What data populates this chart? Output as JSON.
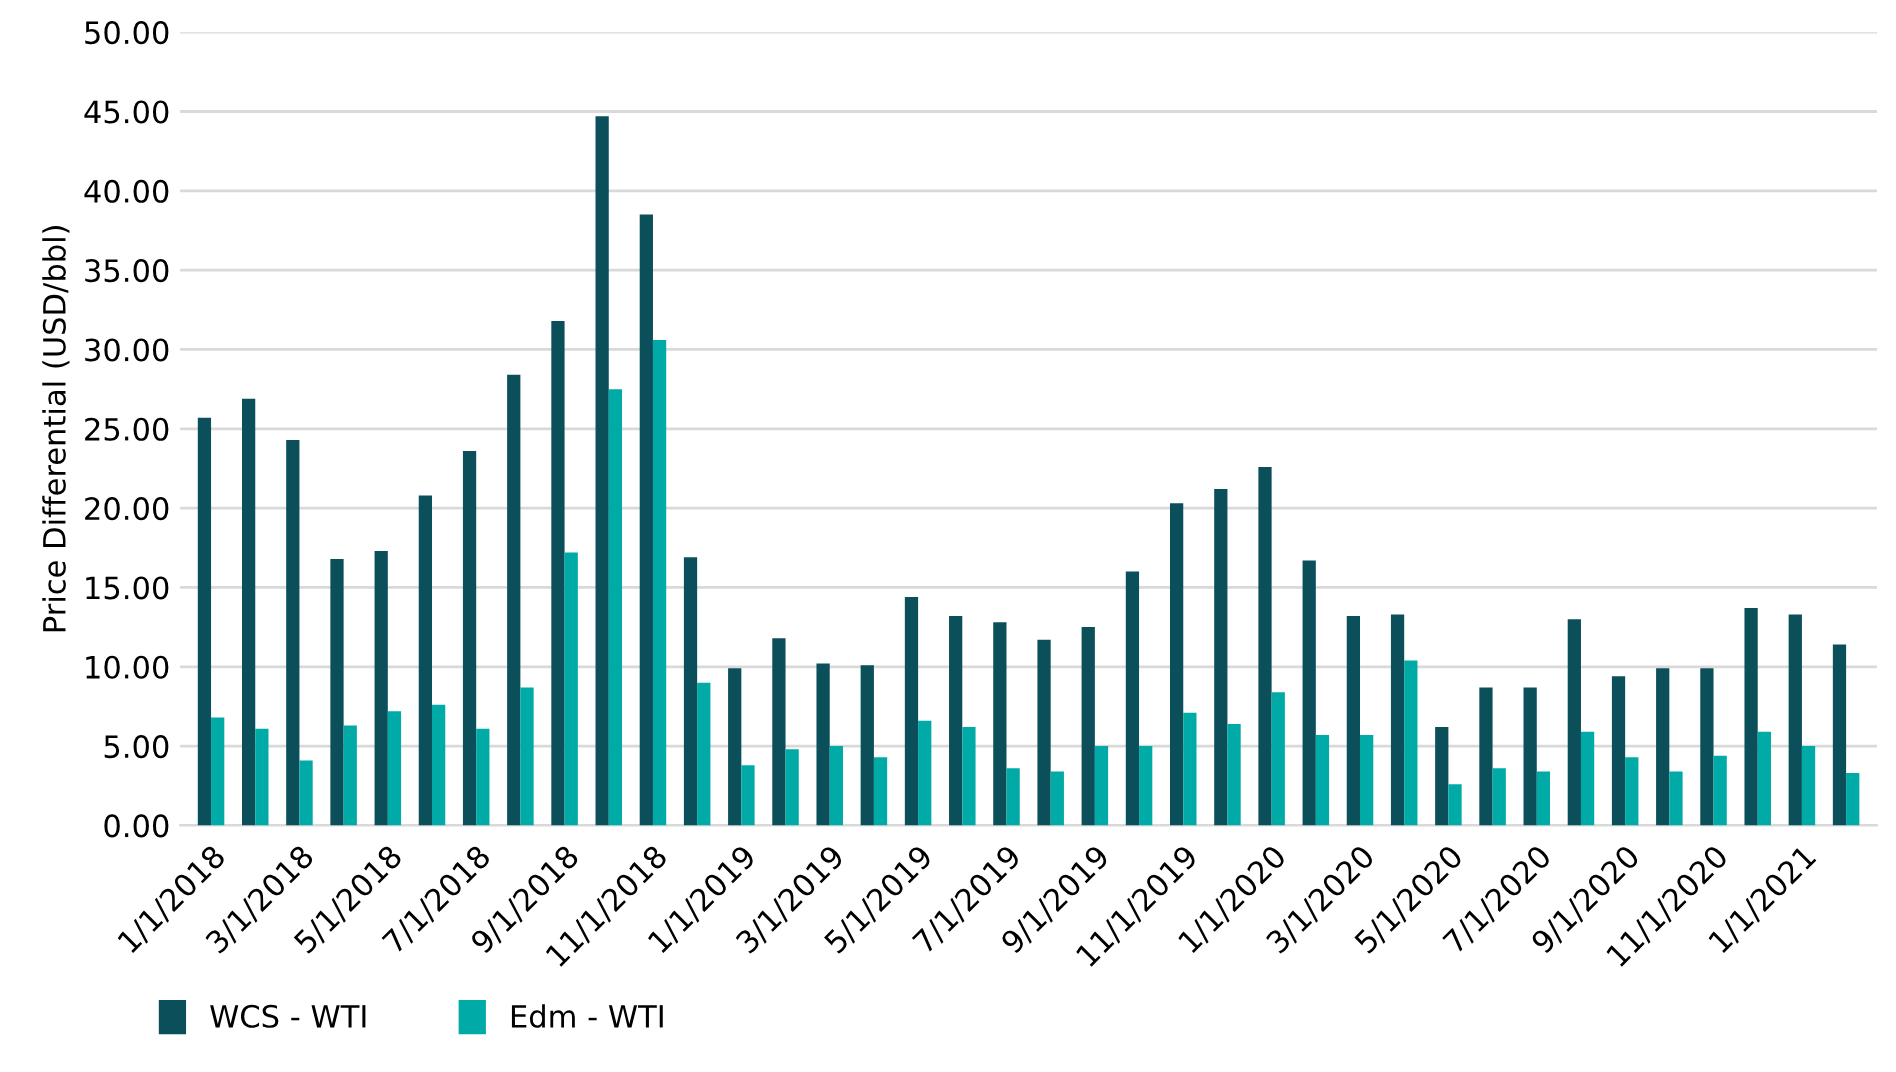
{
  "chart_data": {
    "type": "bar",
    "ylabel": "Price Differential (USD/bbl)",
    "categories": [
      "1/1/2018",
      null,
      "3/1/2018",
      null,
      "5/1/2018",
      null,
      "7/1/2018",
      null,
      "9/1/2018",
      null,
      "11/1/2018",
      null,
      "1/1/2019",
      null,
      "3/1/2019",
      null,
      "5/1/2019",
      null,
      "7/1/2019",
      null,
      "9/1/2019",
      null,
      "11/1/2019",
      null,
      "1/1/2020",
      null,
      "3/1/2020",
      null,
      "5/1/2020",
      null,
      "7/1/2020",
      null,
      "9/1/2020",
      null,
      "11/1/2020",
      null,
      "1/1/2021",
      null
    ],
    "series": [
      {
        "name": "WCS - WTI",
        "color": "#0b4f5a",
        "values": [
          25.7,
          26.9,
          24.3,
          16.8,
          17.3,
          20.8,
          23.6,
          28.4,
          31.8,
          44.7,
          38.5,
          16.9,
          9.9,
          11.8,
          10.2,
          10.1,
          14.4,
          13.2,
          12.8,
          11.7,
          12.5,
          16.0,
          20.3,
          21.2,
          22.6,
          16.7,
          13.2,
          13.3,
          6.2,
          8.7,
          8.7,
          13.0,
          9.4,
          9.9,
          9.9,
          13.7,
          13.3,
          11.4
        ]
      },
      {
        "name": "Edm - WTI",
        "color": "#00aaa6",
        "values": [
          6.8,
          6.1,
          4.1,
          6.3,
          7.2,
          7.6,
          6.1,
          8.7,
          17.2,
          27.5,
          30.6,
          9.0,
          3.8,
          4.8,
          5.0,
          4.3,
          6.6,
          6.2,
          3.6,
          3.4,
          5.0,
          5.0,
          7.1,
          6.4,
          8.4,
          5.7,
          5.7,
          10.4,
          2.6,
          3.6,
          3.4,
          5.9,
          4.3,
          3.4,
          4.4,
          5.9,
          5.0,
          3.3
        ]
      }
    ],
    "ylim": [
      0,
      50
    ],
    "yticks": [
      {
        "value": 0,
        "label": "0.00"
      },
      {
        "value": 5,
        "label": "5.00"
      },
      {
        "value": 10,
        "label": "10.00"
      },
      {
        "value": 15,
        "label": "15.00"
      },
      {
        "value": 20,
        "label": "20.00"
      },
      {
        "value": 25,
        "label": "25.00"
      },
      {
        "value": 30,
        "label": "30.00"
      },
      {
        "value": 35,
        "label": "35.00"
      },
      {
        "value": 40,
        "label": "40.00"
      },
      {
        "value": 45,
        "label": "45.00"
      },
      {
        "value": 50,
        "label": "50.00"
      }
    ],
    "grid": "y",
    "legend": "bottom left"
  }
}
